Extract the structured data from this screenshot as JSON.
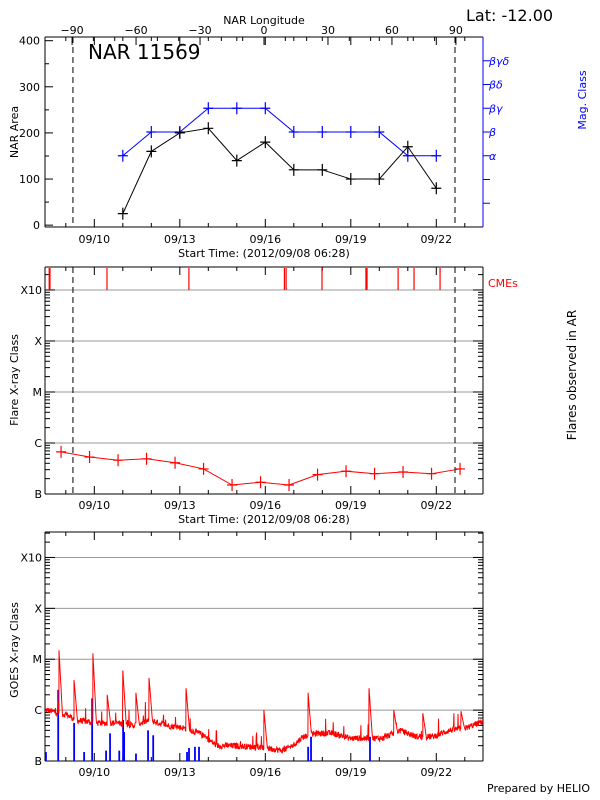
{
  "colors": {
    "area": "#000000",
    "mag_class": "#0000ff",
    "flares": "#ff0000",
    "cmes": "#ff0000",
    "goes": "#ff0000",
    "goes_events": "#0000ff",
    "grid": "#999999"
  },
  "footer": "Prepared by HELIO",
  "chart_data": [
    {
      "type": "line",
      "title": "NAR 11569",
      "annotation": "Lat: -12.00",
      "xlabel": "Start Time: (2012/09/08 06:28)",
      "x2label": "NAR Longitude",
      "ylabel": "NAR Area",
      "y2label": "Mag. Class",
      "xlim": [
        "09/08 06:28",
        "09/23 15:20"
      ],
      "x_ticks": [
        "09/10",
        "09/13",
        "09/16",
        "09/19",
        "09/22"
      ],
      "x2lim": [
        -102.7,
        102.7
      ],
      "x2_ticks": [
        "-90",
        "-60",
        "-30",
        "0",
        "30",
        "60",
        "90"
      ],
      "ylim": [
        -4,
        408
      ],
      "y_ticks": [
        "0",
        "100",
        "200",
        "300",
        "400"
      ],
      "y2lim": [
        -1,
        7
      ],
      "y2_tick_labels": [
        "",
        "",
        "α",
        "β",
        "βγ",
        "βδ",
        "βγδ"
      ],
      "limb_lines": [
        "09/09 06:00",
        "09/22 15:45"
      ],
      "times": [
        "09/11 00:00",
        "09/12 00:00",
        "09/13 00:00",
        "09/14 00:00",
        "09/15 00:00",
        "09/16 00:00",
        "09/17 00:00",
        "09/18 00:00",
        "09/19 00:00",
        "09/20 00:00",
        "09/21 00:00",
        "09/22 00:00"
      ],
      "area": [
        25,
        160,
        200,
        210,
        140,
        180,
        120,
        120,
        100,
        100,
        170,
        80
      ],
      "mag_class": [
        "α",
        "β",
        "β",
        "βγ",
        "βγ",
        "βγ",
        "β",
        "β",
        "β",
        "β",
        "α",
        "α"
      ]
    },
    {
      "type": "line",
      "xlabel": "Start Time: (2012/09/08 06:28)",
      "ylabel": "Flare X-ray Class",
      "y2label": "Flares observed in AR",
      "cme_label": "CMEs",
      "xlim": [
        "09/08 06:28",
        "09/23 15:20"
      ],
      "x_ticks": [
        "09/10",
        "09/13",
        "09/16",
        "09/19",
        "09/22"
      ],
      "ylim_flux_log10": [
        -7,
        -2.55
      ],
      "y_ticks": [
        {
          "label": "B",
          "flux": 1e-07
        },
        {
          "label": "C",
          "flux": 1e-06
        },
        {
          "label": "M",
          "flux": 1e-05
        },
        {
          "label": "X",
          "flux": 0.0001
        },
        {
          "label": "X10",
          "flux": 0.001
        }
      ],
      "grid": true,
      "limb_lines": [
        "09/09 06:00",
        "09/22 15:45"
      ],
      "cme_times": [
        "09/08 10:00",
        "09/08 10:40",
        "09/10 10:40",
        "09/13 07:40",
        "09/16 16:05",
        "09/16 17:30",
        "09/17 23:45",
        "09/19 12:45",
        "09/19 13:40",
        "09/20 15:50",
        "09/21 05:15",
        "09/22 03:10"
      ],
      "flare_times": [
        "09/08 20:00",
        "09/09 20:00",
        "09/10 20:00",
        "09/11 20:00",
        "09/12 20:00",
        "09/13 20:00",
        "09/14 20:00",
        "09/15 20:00",
        "09/16 20:00",
        "09/17 20:00",
        "09/18 20:00",
        "09/19 20:00",
        "09/20 20:00",
        "09/21 20:00",
        "09/22 20:00"
      ],
      "flare_flux": [
        6.7e-07,
        5.3e-07,
        4.6e-07,
        4.9e-07,
        4.1e-07,
        3.1e-07,
        1.5e-07,
        1.7e-07,
        1.5e-07,
        2.4e-07,
        2.8e-07,
        2.5e-07,
        2.7e-07,
        2.5e-07,
        3.1e-07
      ]
    },
    {
      "type": "line",
      "ylabel": "GOES X-ray Class",
      "xlim": [
        "09/08 06:28",
        "09/23 15:20"
      ],
      "x_ticks": [
        "09/10",
        "09/13",
        "09/16",
        "09/19",
        "09/22"
      ],
      "ylim_flux_log10": [
        -7,
        -2.5
      ],
      "y_ticks": [
        {
          "label": "B",
          "flux": 1e-07
        },
        {
          "label": "C",
          "flux": 1e-06
        },
        {
          "label": "M",
          "flux": 1e-05
        },
        {
          "label": "X",
          "flux": 0.0001
        },
        {
          "label": "X10",
          "flux": 0.001
        }
      ],
      "grid": true,
      "background_times": [
        "09/08 08:10",
        "09/09 01:00",
        "09/09 09:20",
        "09/10 04:50",
        "09/10 19:10",
        "09/11 08:40",
        "09/11 22:50",
        "09/12 13:10",
        "09/13 02:40",
        "09/13 17:00",
        "09/14 07:10",
        "09/14 20:50",
        "09/15 11:20",
        "09/16 01:30",
        "09/16 14:20",
        "09/16 23:10",
        "09/17 07:40",
        "09/17 19:25",
        "09/18 08:50",
        "09/18 23:15",
        "09/19 13:40",
        "09/20 03:10",
        "09/20 17:15",
        "09/21 07:40",
        "09/21 21:05",
        "09/22 11:15",
        "09/23 01:40",
        "09/23 15:10"
      ],
      "background_flux": [
        1e-06,
        8e-07,
        6.3e-07,
        5.5e-07,
        5.6e-07,
        5e-07,
        6.3e-07,
        5e-07,
        4.5e-07,
        3.5e-07,
        2e-07,
        2e-07,
        1.9e-07,
        1.8e-07,
        1.6e-07,
        2e-07,
        3e-07,
        3.5e-07,
        3.5e-07,
        2.8e-07,
        2.8e-07,
        2.8e-07,
        4e-07,
        3e-07,
        3e-07,
        4e-07,
        4.5e-07,
        6e-07
      ],
      "peak_times": [
        "09/08 18:15",
        "09/09 06:55",
        "09/09 22:50",
        "09/10 10:50",
        "09/11 00:00",
        "09/11 11:00",
        "09/11 22:05",
        "09/13 05:15",
        "09/15 22:50",
        "09/17 12:00",
        "09/19 15:20",
        "09/20 12:15",
        "09/21 12:40",
        "09/22 20:50"
      ],
      "peak_flux": [
        1.5e-05,
        3.9e-06,
        1.3e-05,
        2e-06,
        6e-06,
        2.2e-06,
        4.3e-06,
        2.7e-06,
        1e-06,
        2.2e-06,
        2.7e-06,
        1e-06,
        8.7e-07,
        9.5e-07
      ],
      "event_times": [
        "09/08 07:10",
        "09/08 17:30",
        "09/09 06:55",
        "09/09 15:20",
        "09/09 22:05",
        "09/10 09:50",
        "09/10 13:10",
        "09/10 20:55",
        "09/11 00:10",
        "09/11 01:00",
        "09/11 11:00",
        "09/11 21:10",
        "09/12 01:30",
        "09/13 06:00",
        "09/13 07:40",
        "09/13 12:40",
        "09/13 16:05",
        "09/17 12:00",
        "09/17 14:25",
        "09/19 16:05"
      ],
      "event_flux": [
        1.5e-07,
        2.5e-06,
        5.6e-07,
        1.5e-07,
        1.7e-06,
        1.6e-07,
        3.5e-07,
        1.6e-07,
        6.4e-07,
        3.7e-07,
        1.4e-07,
        4e-07,
        3.2e-07,
        1.5e-07,
        1.8e-07,
        1.9e-07,
        1.9e-07,
        1.9e-07,
        3e-07,
        3e-07
      ]
    }
  ]
}
